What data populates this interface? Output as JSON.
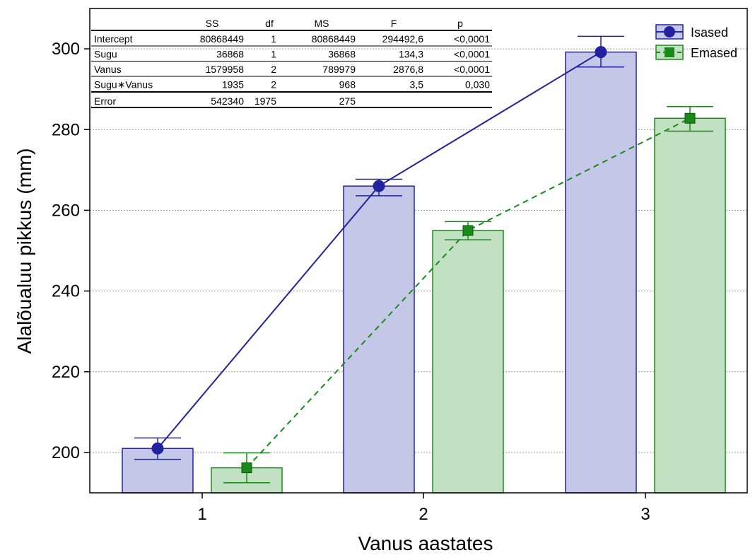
{
  "chart_data": {
    "type": "bar",
    "xlabel": "Vanus aastates",
    "ylabel": "Alalõualuu pikkus (mm)",
    "categories": [
      "1",
      "2",
      "3"
    ],
    "ylim": [
      190,
      310
    ],
    "yticks": [
      200,
      220,
      240,
      260,
      280,
      300
    ],
    "grid": true,
    "legend_position": "top-right",
    "series": [
      {
        "name": "Isased",
        "values": [
          201,
          266,
          299.2
        ],
        "err_low": [
          198.3,
          263.6,
          295.5
        ],
        "err_high": [
          203.6,
          267.7,
          303.1
        ],
        "bar_fill": "#c5c7e8",
        "line_color": "#2222a0",
        "marker": "circle",
        "line_style": "solid"
      },
      {
        "name": "Emased",
        "values": [
          196.2,
          255,
          282.8
        ],
        "err_low": [
          192.5,
          252.7,
          279.6
        ],
        "err_high": [
          199.9,
          257.2,
          285.7
        ],
        "bar_fill": "#c2e0c2",
        "line_color": "#1a8a1a",
        "marker": "square",
        "line_style": "dashed"
      }
    ],
    "table": {
      "headers": [
        "",
        "SS",
        "df",
        "MS",
        "F",
        "p"
      ],
      "rows": [
        [
          "Intercept",
          "80868449",
          "1",
          "80868449",
          "294492,6",
          "<0,0001"
        ],
        [
          "Sugu",
          "36868",
          "1",
          "36868",
          "134,3",
          "<0,0001"
        ],
        [
          "Vanus",
          "1579958",
          "2",
          "789979",
          "2876,8",
          "<0,0001"
        ],
        [
          "Sugu∗Vanus",
          "1935",
          "2",
          "968",
          "3,5",
          "0,030"
        ],
        [
          "Error",
          "542340",
          "1975",
          "275",
          "",
          ""
        ]
      ]
    }
  }
}
